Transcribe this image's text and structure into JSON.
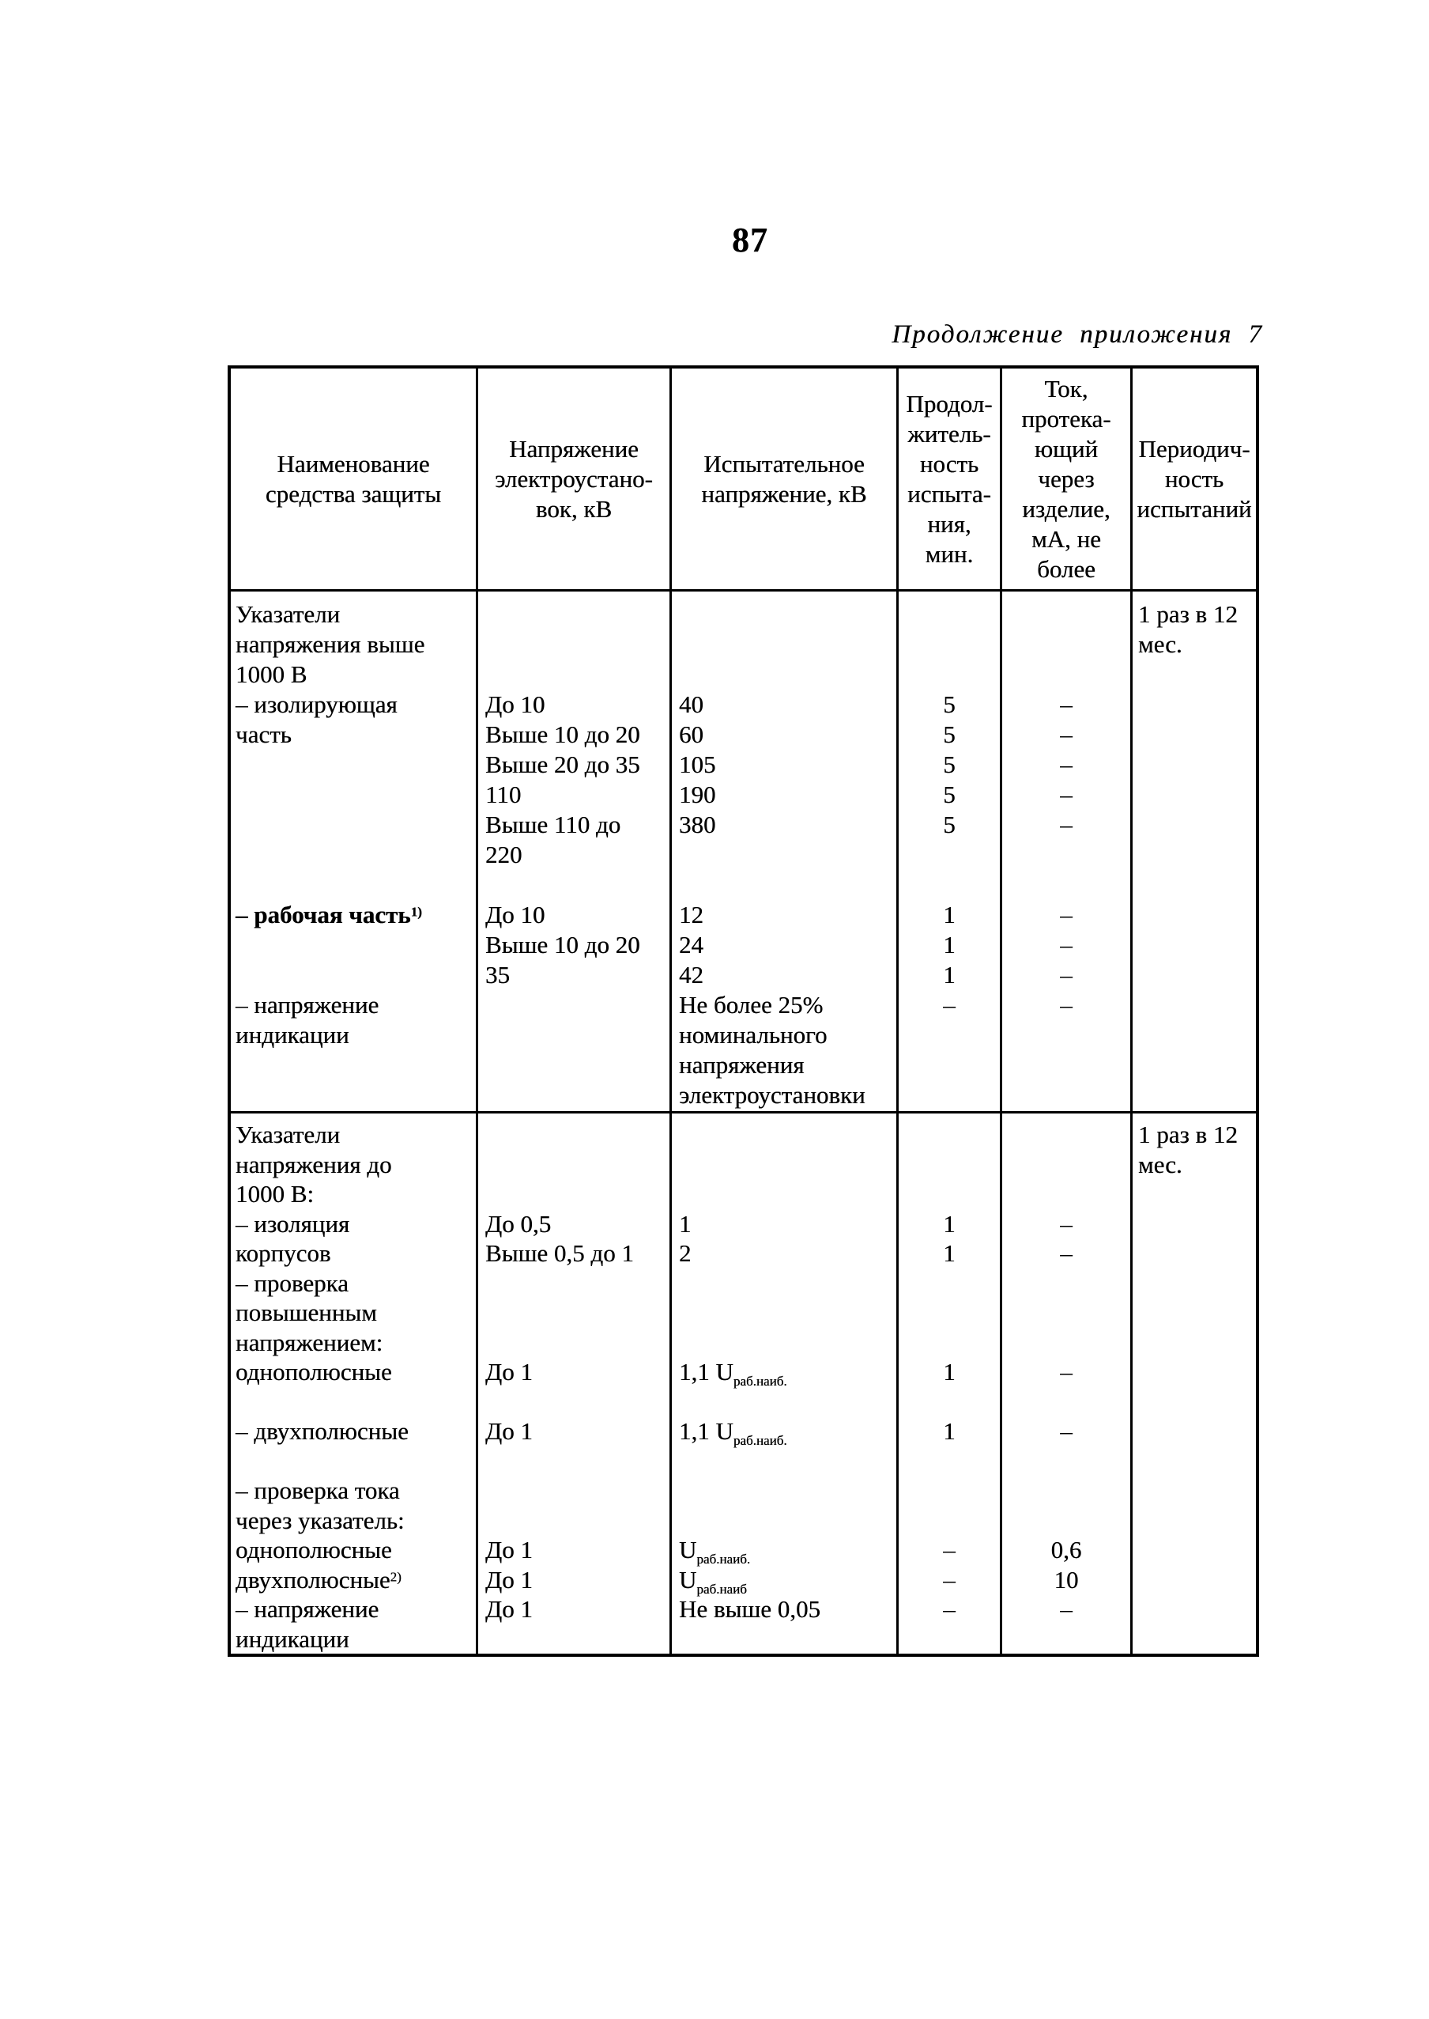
{
  "page": {
    "number": "87",
    "continuation_note": "Продолжение приложения 7"
  },
  "table": {
    "header": [
      [
        "Наименование",
        "средства защиты"
      ],
      [
        "Напряжение",
        "электроустано-",
        "вок, кВ"
      ],
      [
        "Испытательное",
        "напряжение, кВ"
      ],
      [
        "Продол-",
        "житель-",
        "ность",
        "испыта-",
        "ния,",
        "мин."
      ],
      [
        "Ток,",
        "протека-",
        "ющий",
        "через",
        "изделие,",
        "мА, не",
        "более"
      ],
      [
        "Периодич-",
        "ность",
        "испытаний"
      ]
    ],
    "sections": [
      {
        "cols": [
          [
            "Указатели",
            "напряжения выше",
            "1000 В",
            "– изолирующая",
            "часть",
            "",
            "",
            "",
            "",
            "",
            "**– рабочая часть^{1)}**",
            "",
            "",
            "– напряжение",
            "индикации"
          ],
          [
            "",
            "",
            "",
            "До 10",
            "Выше 10 до 20",
            "Выше 20 до 35",
            "110",
            "Выше 110 до",
            "220",
            "",
            "До 10",
            "Выше 10 до 20",
            "35"
          ],
          [
            "",
            "",
            "",
            "40",
            "60",
            "105",
            "190",
            "380",
            "",
            "",
            "12",
            "24",
            "42",
            "Не более 25%",
            "номинального",
            "напряжения",
            "электроустановки"
          ],
          [
            "",
            "",
            "",
            "5",
            "5",
            "5",
            "5",
            "5",
            "",
            "",
            "1",
            "1",
            "1",
            "–"
          ],
          [
            "",
            "",
            "",
            "–",
            "–",
            "–",
            "–",
            "–",
            "",
            "",
            "–",
            "–",
            "–",
            "–"
          ],
          [
            "1 раз в 12",
            "мес."
          ]
        ]
      },
      {
        "cols": [
          [
            "Указатели",
            "напряжения до",
            "1000 В:",
            "– изоляция",
            "корпусов",
            "– проверка",
            "повышенным",
            "напряжением:",
            "однополюсные",
            "",
            "– двухполюсные",
            "",
            "– проверка тока",
            "через указатель:",
            "однополюсные",
            "двухполюсные^{2)}",
            "– напряжение",
            "индикации"
          ],
          [
            "",
            "",
            "",
            "До 0,5",
            "Выше 0,5 до 1",
            "",
            "",
            "",
            "До 1",
            "",
            "До 1",
            "",
            "",
            "",
            "До 1",
            "До 1",
            "До 1"
          ],
          [
            "",
            "",
            "",
            "1",
            "2",
            "",
            "",
            "",
            "1,1 U_{раб.наиб.}",
            "",
            "1,1 U_{раб.наиб.}",
            "",
            "",
            "",
            "U_{раб.наиб.}",
            "U_{раб.наиб}",
            "Не выше 0,05"
          ],
          [
            "",
            "",
            "",
            "1",
            "1",
            "",
            "",
            "",
            "1",
            "",
            "1",
            "",
            "",
            "",
            "–",
            "–",
            "–"
          ],
          [
            "",
            "",
            "",
            "–",
            "–",
            "",
            "",
            "",
            "–",
            "",
            "–",
            "",
            "",
            "",
            "0,6",
            "10",
            "–"
          ],
          [
            "1 раз в 12",
            "мес."
          ]
        ]
      }
    ]
  }
}
